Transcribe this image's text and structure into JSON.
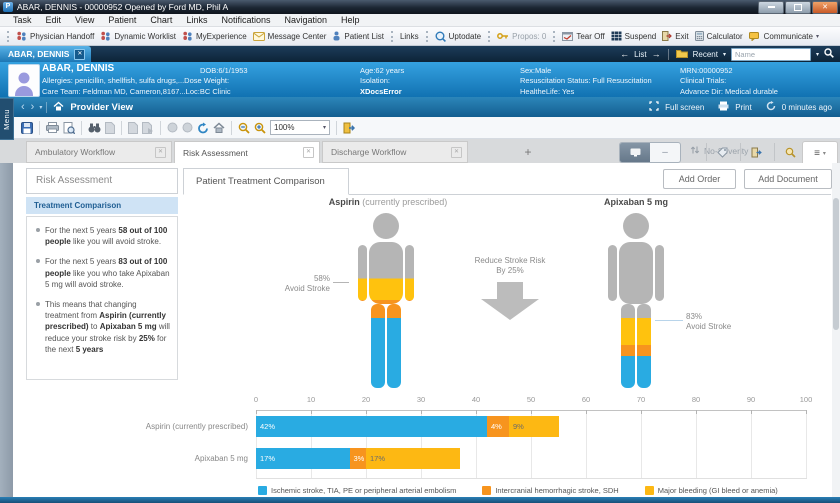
{
  "glyphs": {
    "close": "✕",
    "caret_down": "▾",
    "chevron_left": "‹",
    "chevron_right": "›",
    "arrow_left": "←",
    "arrow_right": "→",
    "hamburger": "≡",
    "dots": "⋮"
  },
  "window": {
    "app_initial": "P",
    "title": "ABAR, DENNIS  - 00000952 Opened by Ford MD, Phil A"
  },
  "menu_bar": [
    "Task",
    "Edit",
    "View",
    "Patient",
    "Chart",
    "Links",
    "Notifications",
    "Navigation",
    "Help"
  ],
  "toolbar": [
    {
      "label": "Physician Handoff",
      "icon": "people-icon"
    },
    {
      "label": "Dynamic Worklist",
      "icon": "people-icon"
    },
    {
      "label": "MyExperience",
      "icon": "people-icon"
    },
    {
      "label": "Message Center",
      "icon": "message-icon"
    },
    {
      "label": "Patient List",
      "icon": "patient-icon"
    },
    {
      "label": "Links",
      "icon": "",
      "sep": true
    },
    {
      "label": "Uptodate",
      "icon": "uptodate-icon",
      "sep": true
    },
    {
      "label": "Propos: 0",
      "icon": "key-icon",
      "sep": true,
      "disabled": true
    },
    {
      "label": "Tear Off",
      "icon": "tearoff-icon",
      "sep": true
    },
    {
      "label": "Suspend",
      "icon": "suspend-icon"
    },
    {
      "label": "Exit",
      "icon": "exit-door-icon"
    },
    {
      "label": "Calculator",
      "icon": "calculator-icon"
    },
    {
      "label": "Communicate",
      "icon": "communicate-icon",
      "dropdown": true
    }
  ],
  "patient_tab": {
    "label": "ABAR, DENNIS"
  },
  "patient_nav": {
    "list_label": "List",
    "recent_label": "Recent",
    "search_placeholder": "Name"
  },
  "patient_banner": {
    "name": "ABAR, DENNIS",
    "dob": "DOB:6/1/1953",
    "age": "Age:62 years",
    "sex": "Sex:Male",
    "mrn": "MRN:00000952",
    "allergies": "Allergies: penicillin, shellfish, sulfa drugs,...",
    "dose_weight": "Dose Weight:",
    "isolation": "Isolation:",
    "resuscitation": "Resuscitation Status: Full Resuscitation",
    "clinical_trials": "Clinical Trials:",
    "care_team": "Care Team: Feldman MD, Cameron,8167...",
    "location": "Loc:BC Clinic",
    "xdocs": "XDocsError",
    "healthelife": "HealtheLife: Yes",
    "advance_dir": "Advance Dir: Medical durable"
  },
  "side_menu_label": "Menu",
  "view_bar": {
    "title": "Provider View",
    "fullscreen_label": "Full screen",
    "print_label": "Print",
    "refresh_label": "0 minutes ago"
  },
  "format_toolbar": {
    "zoom_value": "100%"
  },
  "workflow_tabs": {
    "tabs": [
      {
        "label": "Ambulatory Workflow"
      },
      {
        "label": "Risk Assessment",
        "active": true
      },
      {
        "label": "Discharge Workflow"
      }
    ],
    "add_label": "+",
    "no_severity_label": "No-Severity"
  },
  "content": {
    "panel_title": "Risk Assessment",
    "tab_label": "Patient Treatment Comparison",
    "add_order_label": "Add Order",
    "add_document_label": "Add Document",
    "sidebar": {
      "header": "Treatment Comparison",
      "bullets": [
        [
          {
            "t": "For the next 5 years "
          },
          {
            "t": "58 out of 100 people",
            "b": 1
          },
          {
            "t": " like you will avoid stroke."
          }
        ],
        [
          {
            "t": "For the next 5 years "
          },
          {
            "t": "83 out of 100 people",
            "b": 1
          },
          {
            "t": " like you who take Apixaban 5 mg will avoid stroke."
          }
        ],
        [
          {
            "t": "This means that changing treatment from "
          },
          {
            "t": "Aspirin (currently prescribed)",
            "b": 1
          },
          {
            "t": " to "
          },
          {
            "t": "Apixaban 5 mg",
            "b": 1
          },
          {
            "t": " will reduce your stroke risk by "
          },
          {
            "t": "25%",
            "b": 1
          },
          {
            "t": " for the next "
          },
          {
            "t": "5 years",
            "b": 1
          }
        ]
      ]
    },
    "comparison": {
      "left_title_bold": "Aspirin",
      "left_title_rest": " (currently prescribed)",
      "right_title_bold": "Apixaban 5 mg",
      "right_title_rest": "",
      "left_callout_value": "58%",
      "left_callout_label": "Avoid Stroke",
      "right_callout_value": "83%",
      "right_callout_label": "Avoid Stroke",
      "arrow_line1": "Reduce Stroke Risk",
      "arrow_line2": "By 25%"
    }
  },
  "chart_data": {
    "type": "bar",
    "stacked": true,
    "orientation": "horizontal",
    "grid": true,
    "legend_position": "bottom",
    "categories": [
      "Aspirin (currently prescribed)",
      "Apixaban 5 mg"
    ],
    "series": [
      {
        "name": "Ischemic stroke, TIA, PE or peripheral arterial embolism",
        "color": "#29abe2",
        "label_color": "#ffffff",
        "values": [
          42,
          17
        ]
      },
      {
        "name": "Intercranial hemorrhagic stroke, SDH",
        "color": "#f7941e",
        "label_color": "#ffffff",
        "values": [
          4,
          3
        ]
      },
      {
        "name": "Major bleeding (GI bleed or anemia)",
        "color": "#fdb813",
        "label_color": "#6b6b6b",
        "values": [
          9,
          17
        ]
      }
    ],
    "xlim": [
      0,
      100
    ],
    "x_ticks": [
      0,
      10,
      20,
      30,
      40,
      50,
      60,
      70,
      80,
      90,
      100
    ],
    "value_suffix": "%"
  },
  "colors": {
    "segment_blue": "#29abe2",
    "segment_orange": "#f7941e",
    "segment_yellow": "#fdb813",
    "figure_gray": "#b5b5b5",
    "figure_yellow": "#ffc20e",
    "banner_top": "#35a1e0",
    "banner_bottom": "#1172b2"
  }
}
